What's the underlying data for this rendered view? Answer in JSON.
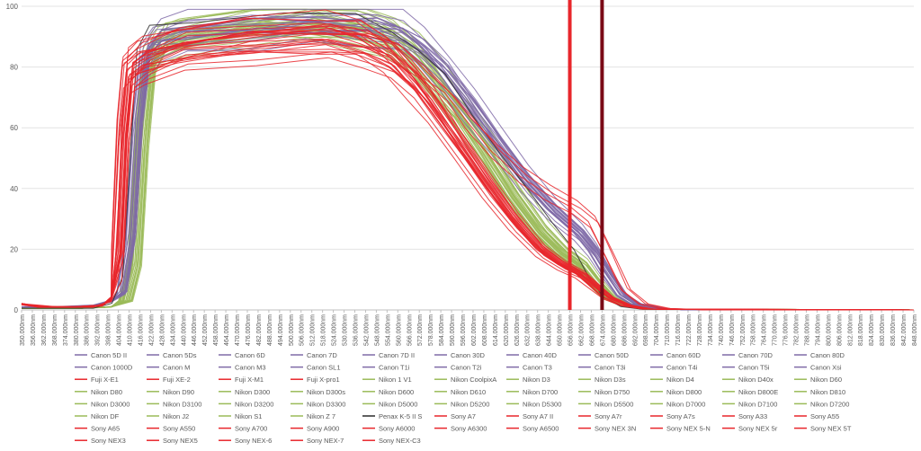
{
  "chart_data": {
    "type": "line",
    "title": "",
    "xlabel": "",
    "ylabel": "",
    "ylim": [
      0,
      100
    ],
    "yticks": [
      0,
      20,
      40,
      60,
      80,
      100
    ],
    "xlim": [
      350,
      848
    ],
    "xtick_step": 6,
    "xtick_suffix": "nm",
    "grid": "horizontal",
    "legend_position": "bottom",
    "vertical_markers": [
      {
        "x": 656,
        "color": "#e8262b"
      },
      {
        "x": 674,
        "color": "#7a0a16"
      }
    ],
    "family_colors": {
      "canon": "#7f6aa7",
      "fuji": "#e8262b",
      "nikon": "#9bbb59",
      "pentax": "#2b2b2b",
      "sony": "#e8262b"
    },
    "family_profiles": [
      {
        "family": "canon",
        "points": [
          [
            350,
            1
          ],
          [
            370,
            1
          ],
          [
            390,
            1.5
          ],
          [
            400,
            3
          ],
          [
            405,
            6
          ],
          [
            410,
            25
          ],
          [
            414,
            65
          ],
          [
            418,
            86
          ],
          [
            425,
            91
          ],
          [
            440,
            93
          ],
          [
            480,
            95
          ],
          [
            510,
            96
          ],
          [
            545,
            95
          ],
          [
            560,
            93
          ],
          [
            572,
            88
          ],
          [
            585,
            80
          ],
          [
            600,
            68
          ],
          [
            615,
            56
          ],
          [
            630,
            44
          ],
          [
            645,
            34
          ],
          [
            660,
            26
          ],
          [
            668,
            20
          ],
          [
            676,
            12
          ],
          [
            684,
            5
          ],
          [
            692,
            2
          ],
          [
            705,
            0.5
          ],
          [
            720,
            0.1
          ],
          [
            848,
            0
          ]
        ]
      },
      {
        "family": "fuji",
        "points": [
          [
            350,
            2
          ],
          [
            370,
            1
          ],
          [
            390,
            1
          ],
          [
            400,
            3
          ],
          [
            404,
            10
          ],
          [
            408,
            55
          ],
          [
            412,
            80
          ],
          [
            420,
            84
          ],
          [
            440,
            88
          ],
          [
            480,
            92
          ],
          [
            520,
            93
          ],
          [
            545,
            91
          ],
          [
            560,
            87
          ],
          [
            575,
            80
          ],
          [
            590,
            72
          ],
          [
            600,
            64
          ],
          [
            615,
            54
          ],
          [
            630,
            46
          ],
          [
            645,
            40
          ],
          [
            660,
            35
          ],
          [
            670,
            30
          ],
          [
            678,
            20
          ],
          [
            688,
            7
          ],
          [
            698,
            2
          ],
          [
            710,
            0.5
          ],
          [
            730,
            0.1
          ],
          [
            848,
            0
          ]
        ]
      },
      {
        "family": "nikon",
        "points": [
          [
            350,
            0.5
          ],
          [
            380,
            0.5
          ],
          [
            400,
            1
          ],
          [
            408,
            3
          ],
          [
            413,
            15
          ],
          [
            417,
            55
          ],
          [
            421,
            80
          ],
          [
            428,
            88
          ],
          [
            440,
            90
          ],
          [
            480,
            94
          ],
          [
            510,
            95
          ],
          [
            540,
            93
          ],
          [
            555,
            90
          ],
          [
            568,
            84
          ],
          [
            580,
            76
          ],
          [
            595,
            65
          ],
          [
            610,
            52
          ],
          [
            625,
            38
          ],
          [
            640,
            26
          ],
          [
            652,
            19
          ],
          [
            662,
            15
          ],
          [
            670,
            9
          ],
          [
            678,
            4
          ],
          [
            688,
            1.5
          ],
          [
            700,
            0.3
          ],
          [
            848,
            0
          ]
        ]
      },
      {
        "family": "pentax",
        "points": [
          [
            350,
            0.5
          ],
          [
            390,
            0.5
          ],
          [
            404,
            2
          ],
          [
            410,
            10
          ],
          [
            414,
            45
          ],
          [
            418,
            80
          ],
          [
            425,
            88
          ],
          [
            450,
            91
          ],
          [
            500,
            94
          ],
          [
            540,
            92
          ],
          [
            560,
            88
          ],
          [
            575,
            81
          ],
          [
            590,
            72
          ],
          [
            605,
            60
          ],
          [
            620,
            48
          ],
          [
            635,
            37
          ],
          [
            650,
            26
          ],
          [
            662,
            18
          ],
          [
            670,
            10
          ],
          [
            678,
            4
          ],
          [
            688,
            1
          ],
          [
            700,
            0.2
          ],
          [
            848,
            0
          ]
        ]
      },
      {
        "family": "sony",
        "points": [
          [
            350,
            2
          ],
          [
            360,
            1
          ],
          [
            380,
            1
          ],
          [
            395,
            1.5
          ],
          [
            400,
            4
          ],
          [
            404,
            20
          ],
          [
            407,
            60
          ],
          [
            410,
            80
          ],
          [
            418,
            84
          ],
          [
            440,
            88
          ],
          [
            480,
            91
          ],
          [
            520,
            92
          ],
          [
            540,
            90
          ],
          [
            555,
            85
          ],
          [
            568,
            77
          ],
          [
            580,
            68
          ],
          [
            595,
            55
          ],
          [
            610,
            42
          ],
          [
            625,
            30
          ],
          [
            640,
            20
          ],
          [
            652,
            15
          ],
          [
            662,
            12
          ],
          [
            670,
            8
          ],
          [
            678,
            4
          ],
          [
            688,
            1.5
          ],
          [
            700,
            0.3
          ],
          [
            848,
            0
          ]
        ]
      }
    ],
    "series": [
      {
        "name": "Canon 5D II",
        "family": "canon"
      },
      {
        "name": "Canon 5Ds",
        "family": "canon"
      },
      {
        "name": "Canon 6D",
        "family": "canon"
      },
      {
        "name": "Canon 7D",
        "family": "canon"
      },
      {
        "name": "Canon 7D II",
        "family": "canon"
      },
      {
        "name": "Canon 30D",
        "family": "canon"
      },
      {
        "name": "Canon 40D",
        "family": "canon"
      },
      {
        "name": "Canon 50D",
        "family": "canon"
      },
      {
        "name": "Canon 60D",
        "family": "canon"
      },
      {
        "name": "Canon 70D",
        "family": "canon"
      },
      {
        "name": "Canon 80D",
        "family": "canon"
      },
      {
        "name": "Canon 1000D",
        "family": "canon"
      },
      {
        "name": "Canon M",
        "family": "canon"
      },
      {
        "name": "Canon M3",
        "family": "canon"
      },
      {
        "name": "Canon SL1",
        "family": "canon"
      },
      {
        "name": "Canon T1i",
        "family": "canon"
      },
      {
        "name": "Canon T2i",
        "family": "canon"
      },
      {
        "name": "Canon T3",
        "family": "canon"
      },
      {
        "name": "Canon T3i",
        "family": "canon"
      },
      {
        "name": "Canon T4i",
        "family": "canon"
      },
      {
        "name": "Canon T5i",
        "family": "canon"
      },
      {
        "name": "Canon Xsi",
        "family": "canon"
      },
      {
        "name": "Fuji X-E1",
        "family": "fuji"
      },
      {
        "name": "Fuji XE-2",
        "family": "fuji"
      },
      {
        "name": "Fuji X-M1",
        "family": "fuji"
      },
      {
        "name": "Fuji X-pro1",
        "family": "fuji"
      },
      {
        "name": "Nikon 1 V1",
        "family": "nikon"
      },
      {
        "name": "Nikon CoolpixA",
        "family": "nikon"
      },
      {
        "name": "Nikon D3",
        "family": "nikon"
      },
      {
        "name": "Nikon D3s",
        "family": "nikon"
      },
      {
        "name": "Nikon D4",
        "family": "nikon"
      },
      {
        "name": "Nikon D40x",
        "family": "nikon"
      },
      {
        "name": "Nikon D60",
        "family": "nikon"
      },
      {
        "name": "Nikon D80",
        "family": "nikon"
      },
      {
        "name": "Nikon D90",
        "family": "nikon"
      },
      {
        "name": "Nikon D300",
        "family": "nikon"
      },
      {
        "name": "Nikon D300s",
        "family": "nikon"
      },
      {
        "name": "Nikon D600",
        "family": "nikon"
      },
      {
        "name": "Nikon D610",
        "family": "nikon"
      },
      {
        "name": "Nikon D700",
        "family": "nikon"
      },
      {
        "name": "Nikon D750",
        "family": "nikon"
      },
      {
        "name": "Nikon D800",
        "family": "nikon"
      },
      {
        "name": "Nikon D800E",
        "family": "nikon"
      },
      {
        "name": "Nikon D810",
        "family": "nikon"
      },
      {
        "name": "Nikon D3000",
        "family": "nikon"
      },
      {
        "name": "Nikon D3100",
        "family": "nikon"
      },
      {
        "name": "Nikon D3200",
        "family": "nikon"
      },
      {
        "name": "Nikon D3300",
        "family": "nikon"
      },
      {
        "name": "Nikon D5000",
        "family": "nikon"
      },
      {
        "name": "Nikon D5200",
        "family": "nikon"
      },
      {
        "name": "Nikon D5300",
        "family": "nikon"
      },
      {
        "name": "Nikon D5500",
        "family": "nikon"
      },
      {
        "name": "Nikon D7000",
        "family": "nikon"
      },
      {
        "name": "Nikon D7100",
        "family": "nikon"
      },
      {
        "name": "Nikon D7200",
        "family": "nikon"
      },
      {
        "name": "Nikon DF",
        "family": "nikon"
      },
      {
        "name": "Nikon J2",
        "family": "nikon"
      },
      {
        "name": "Nikon S1",
        "family": "nikon"
      },
      {
        "name": "Nikon Z 7",
        "family": "nikon"
      },
      {
        "name": "Penax K-5 II S",
        "family": "pentax"
      },
      {
        "name": "Sony A7",
        "family": "sony"
      },
      {
        "name": "Sony A7 II",
        "family": "sony"
      },
      {
        "name": "Sony A7r",
        "family": "sony"
      },
      {
        "name": "Sony A7s",
        "family": "sony"
      },
      {
        "name": "Sony A33",
        "family": "sony"
      },
      {
        "name": "Sony A55",
        "family": "sony"
      },
      {
        "name": "Sony A65",
        "family": "sony"
      },
      {
        "name": "Sony A550",
        "family": "sony"
      },
      {
        "name": "Sony A700",
        "family": "sony"
      },
      {
        "name": "Sony A900",
        "family": "sony"
      },
      {
        "name": "Sony A6000",
        "family": "sony"
      },
      {
        "name": "Sony A6300",
        "family": "sony"
      },
      {
        "name": "Sony A6500",
        "family": "sony"
      },
      {
        "name": "Sony NEX 3N",
        "family": "sony"
      },
      {
        "name": "Sony NEX 5-N",
        "family": "sony"
      },
      {
        "name": "Sony NEX 5r",
        "family": "sony"
      },
      {
        "name": "Sony NEX 5T",
        "family": "sony"
      },
      {
        "name": "Sony NEX3",
        "family": "sony"
      },
      {
        "name": "Sony NEX5",
        "family": "sony"
      },
      {
        "name": "Sony NEX-6",
        "family": "sony"
      },
      {
        "name": "Sony NEX-7",
        "family": "sony"
      },
      {
        "name": "Sony NEX-C3",
        "family": "sony"
      }
    ]
  }
}
